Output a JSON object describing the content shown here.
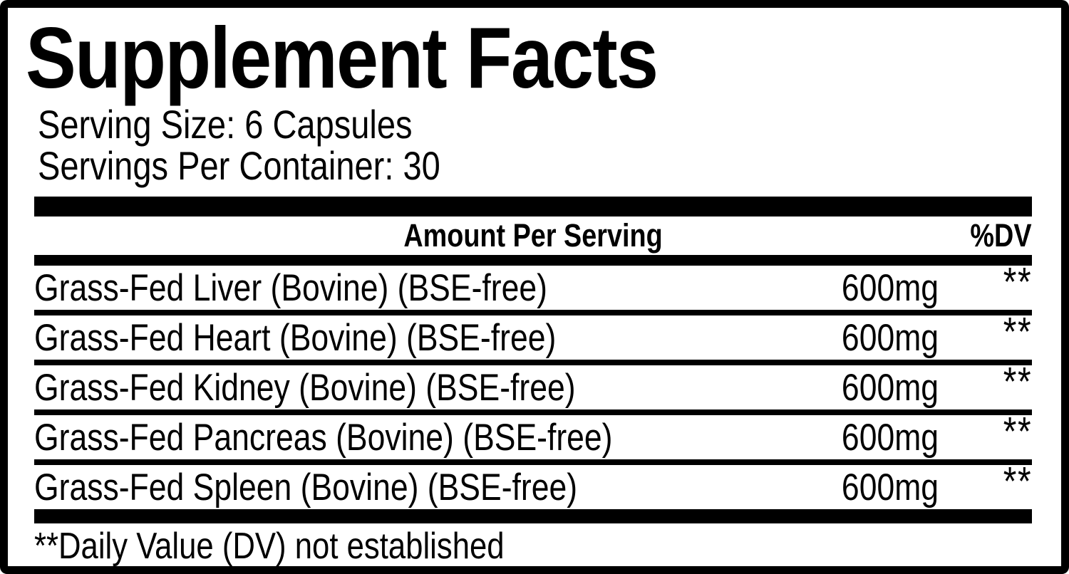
{
  "label": {
    "title": "Supplement Facts",
    "serving_size": "Serving Size: 6 Capsules",
    "servings_per_container": "Servings Per Container: 30",
    "columns": {
      "amount_header": "Amount Per Serving",
      "dv_header": "%DV"
    },
    "ingredients": [
      {
        "name": "Grass-Fed Liver (Bovine) (BSE-free)",
        "amount": "600mg",
        "dv": "**"
      },
      {
        "name": "Grass-Fed Heart (Bovine) (BSE-free)",
        "amount": "600mg",
        "dv": "**"
      },
      {
        "name": "Grass-Fed Kidney (Bovine) (BSE-free)",
        "amount": "600mg",
        "dv": "**"
      },
      {
        "name": "Grass-Fed Pancreas (Bovine) (BSE-free)",
        "amount": "600mg",
        "dv": "**"
      },
      {
        "name": "Grass-Fed Spleen (Bovine) (BSE-free)",
        "amount": "600mg",
        "dv": "**"
      }
    ],
    "footnote": "**Daily Value (DV) not established",
    "colors": {
      "ink": "#000000",
      "background": "#ffffff"
    }
  }
}
